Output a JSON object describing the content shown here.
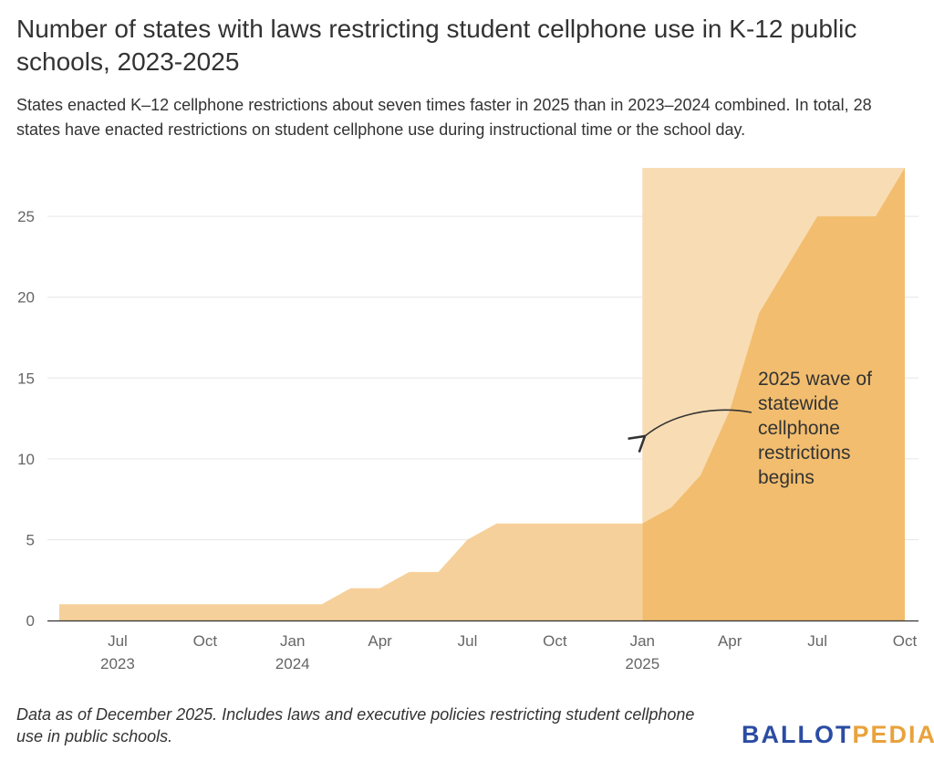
{
  "title": "Number of states with laws restricting student cellphone use in K-12 public schools, 2023-2025",
  "subtitle": "States enacted K–12 cellphone restrictions about seven times faster in 2025 than in 2023–2024 combined. In total, 28 states have enacted restrictions on student cellphone use during instructional time or the school day.",
  "note": "Data as of December 2025. Includes laws and executive policies restricting student cellphone use in public schools.",
  "logo": {
    "part1": "BALLOT",
    "part2": "PEDIA"
  },
  "colors": {
    "area_light": "#f6d09a",
    "area_dark": "#f2bd6e",
    "highlight_band": "#f8dcb3",
    "grid": "#e6e6e6",
    "axis": "#333333"
  },
  "chart_data": {
    "type": "area",
    "title": "Number of states with laws restricting student cellphone use in K-12 public schools, 2023-2025",
    "xlabel": "",
    "ylabel": "",
    "ylim": [
      0,
      28
    ],
    "yticks": [
      0,
      5,
      10,
      15,
      20,
      25
    ],
    "grid": true,
    "xticks": [
      {
        "date": "2023-07",
        "label": "Jul",
        "year": "2023"
      },
      {
        "date": "2023-10",
        "label": "Oct",
        "year": ""
      },
      {
        "date": "2024-01",
        "label": "Jan",
        "year": "2024"
      },
      {
        "date": "2024-04",
        "label": "Apr",
        "year": ""
      },
      {
        "date": "2024-07",
        "label": "Jul",
        "year": ""
      },
      {
        "date": "2024-10",
        "label": "Oct",
        "year": ""
      },
      {
        "date": "2025-01",
        "label": "Jan",
        "year": "2025"
      },
      {
        "date": "2025-04",
        "label": "Apr",
        "year": ""
      },
      {
        "date": "2025-07",
        "label": "Jul",
        "year": ""
      },
      {
        "date": "2025-10",
        "label": "Oct",
        "year": ""
      }
    ],
    "series": [
      {
        "points": [
          {
            "x": "2023-05",
            "y": 1
          },
          {
            "x": "2024-02",
            "y": 1
          },
          {
            "x": "2024-03",
            "y": 2
          },
          {
            "x": "2024-04",
            "y": 2
          },
          {
            "x": "2024-05",
            "y": 3
          },
          {
            "x": "2024-06",
            "y": 3
          },
          {
            "x": "2024-07",
            "y": 5
          },
          {
            "x": "2024-08",
            "y": 6
          },
          {
            "x": "2025-01",
            "y": 6
          },
          {
            "x": "2025-02",
            "y": 7
          },
          {
            "x": "2025-03",
            "y": 9
          },
          {
            "x": "2025-04",
            "y": 13
          },
          {
            "x": "2025-05",
            "y": 19
          },
          {
            "x": "2025-06",
            "y": 22
          },
          {
            "x": "2025-07",
            "y": 25
          },
          {
            "x": "2025-09",
            "y": 25
          },
          {
            "x": "2025-10",
            "y": 28
          }
        ]
      }
    ],
    "highlight": {
      "start": "2025-01",
      "end": "2025-10"
    },
    "annotation": {
      "lines": [
        "2025 wave of",
        "statewide",
        "cellphone",
        "restrictions",
        "begins"
      ]
    }
  }
}
